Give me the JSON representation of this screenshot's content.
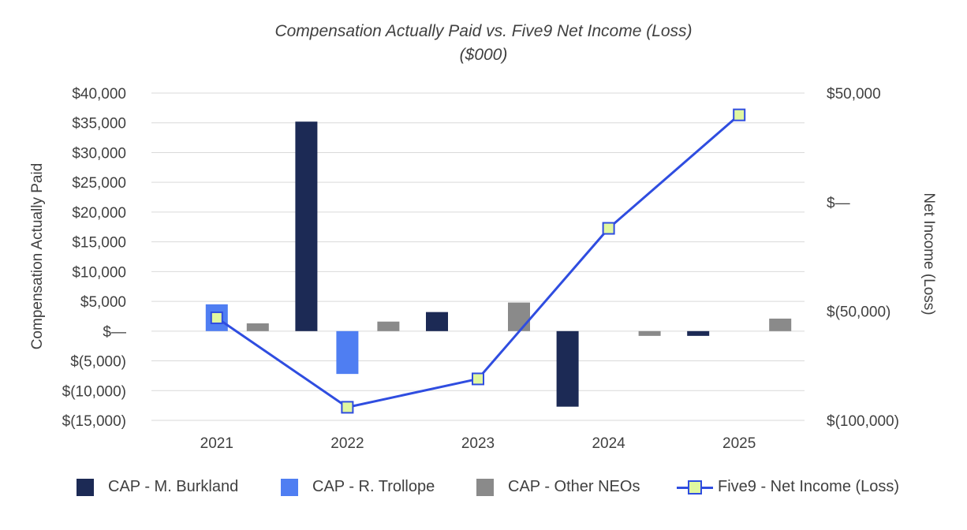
{
  "title": {
    "line1": "Compensation Actually Paid vs. Five9 Net Income (Loss)",
    "line2": "($000)"
  },
  "chart_data": {
    "type": "bar",
    "categories": [
      "2021",
      "2022",
      "2023",
      "2024",
      "2025"
    ],
    "series": [
      {
        "name": "CAP - M. Burkland",
        "values": [
          0,
          35200,
          3200,
          -12700,
          -800
        ],
        "color": "#1c2a55"
      },
      {
        "name": "CAP - R. Trollope",
        "values": [
          4500,
          -7200,
          0,
          0,
          0
        ],
        "color": "#4f7ef2"
      },
      {
        "name": "CAP - Other NEOs",
        "values": [
          1300,
          1600,
          4800,
          -800,
          2100
        ],
        "color": "#8a8a8a"
      }
    ],
    "line_series": {
      "name": "Five9 - Net Income (Loss)",
      "values": [
        -53000,
        -94000,
        -81000,
        -12000,
        40000
      ],
      "color": "#2f4de0",
      "marker_color": "#e1f7a0",
      "axis": "right"
    },
    "y_left": {
      "label": "Compensation Actually Paid",
      "ylim": [
        -15000,
        40000
      ],
      "ticks": [
        40000,
        35000,
        30000,
        25000,
        20000,
        15000,
        10000,
        5000,
        0,
        -5000,
        -10000,
        -15000
      ],
      "tick_labels": [
        "$40,000",
        "$35,000",
        "$30,000",
        "$25,000",
        "$20,000",
        "$15,000",
        "$10,000",
        "$5,000",
        "$—",
        "$(5,000)",
        "$(10,000)",
        "$(15,000)"
      ]
    },
    "y_right": {
      "label": "Net Income (Loss)",
      "ylim": [
        -100000,
        50000
      ],
      "ticks": [
        50000,
        0,
        -50000,
        -100000
      ],
      "tick_labels": [
        "$50,000",
        "$—",
        "$(50,000)",
        "$(100,000)"
      ]
    },
    "grid": true,
    "legend_position": "bottom"
  }
}
